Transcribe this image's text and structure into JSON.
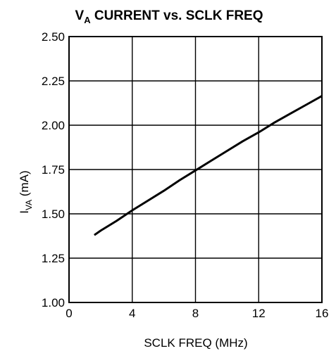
{
  "chart_data": {
    "type": "line",
    "title": {
      "main": "V",
      "sub": "A",
      "rest": " CURRENT vs. SCLK FREQ"
    },
    "xlabel": "SCLK FREQ (MHz)",
    "ylabel": {
      "main": "I",
      "sub": "VA",
      "rest": " (mA)"
    },
    "xlim": [
      0,
      16
    ],
    "ylim": [
      1.0,
      2.5
    ],
    "xticks": [
      0,
      4,
      8,
      12,
      16
    ],
    "xtick_labels": [
      "0",
      "4",
      "8",
      "12",
      "16"
    ],
    "yticks": [
      1.0,
      1.25,
      1.5,
      1.75,
      2.0,
      2.25,
      2.5
    ],
    "ytick_labels": [
      "1.00",
      "1.25",
      "1.50",
      "1.75",
      "2.00",
      "2.25",
      "2.50"
    ],
    "grid": true,
    "series": [
      {
        "x": [
          1.6,
          2,
          3,
          4,
          5,
          6,
          7,
          8,
          9,
          10,
          11,
          12,
          13,
          14,
          15,
          16
        ],
        "y": [
          1.38,
          1.405,
          1.46,
          1.52,
          1.575,
          1.63,
          1.69,
          1.745,
          1.8,
          1.855,
          1.91,
          1.96,
          2.015,
          2.065,
          2.115,
          2.165
        ]
      }
    ]
  }
}
